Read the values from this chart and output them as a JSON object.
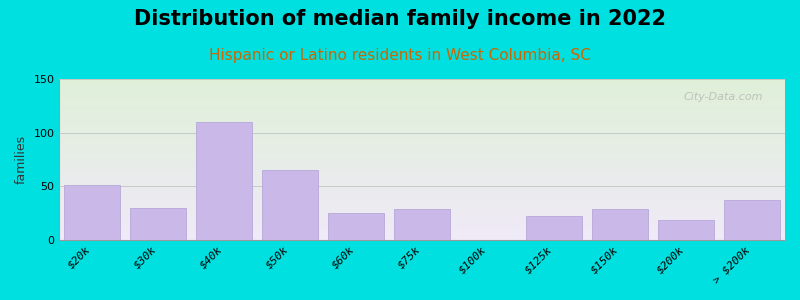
{
  "title": "Distribution of median family income in 2022",
  "subtitle": "Hispanic or Latino residents in West Columbia, SC",
  "categories": [
    "$20k",
    "$30k",
    "$40k",
    "$50k",
    "$60k",
    "$75k",
    "$100k",
    "$125k",
    "$150k",
    "$200k",
    "> $200k"
  ],
  "values": [
    51,
    30,
    110,
    65,
    25,
    29,
    0,
    22,
    29,
    18,
    37
  ],
  "bar_color": "#c9b8e8",
  "bar_edgecolor": "#b0a0d5",
  "background_outer": "#00e0e0",
  "background_inner_top": "#dff0d8",
  "background_inner_bottom": "#f0eaf8",
  "title_color": "#000000",
  "subtitle_color": "#cc6600",
  "ylabel": "families",
  "ylim": [
    0,
    150
  ],
  "yticks": [
    0,
    50,
    100,
    150
  ],
  "watermark": "City-Data.com",
  "title_fontsize": 15,
  "subtitle_fontsize": 11,
  "ylabel_fontsize": 9,
  "tick_fontsize": 8
}
